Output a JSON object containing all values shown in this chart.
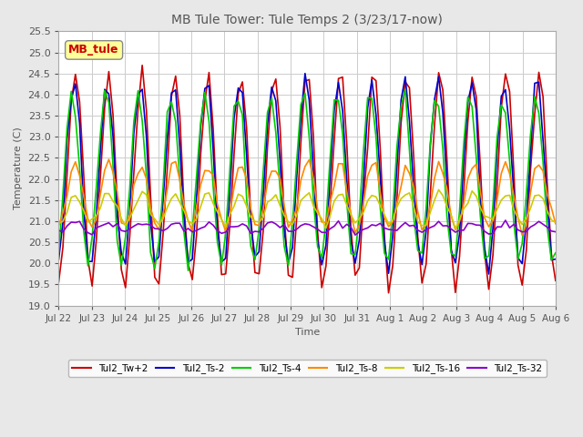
{
  "title": "MB Tule Tower: Tule Temps 2 (3/23/17-now)",
  "xlabel": "Time",
  "ylabel": "Temperature (C)",
  "ylim": [
    19.0,
    25.5
  ],
  "yticks": [
    19.0,
    19.5,
    20.0,
    20.5,
    21.0,
    21.5,
    22.0,
    22.5,
    23.0,
    23.5,
    24.0,
    24.5,
    25.0,
    25.5
  ],
  "x_labels": [
    "Jul 22",
    "Jul 23",
    "Jul 24",
    "Jul 25",
    "Jul 26",
    "Jul 27",
    "Jul 28",
    "Jul 29",
    "Jul 30",
    "Jul 31",
    "Aug 1",
    "Aug 2",
    "Aug 3",
    "Aug 4",
    "Aug 5",
    "Aug 6"
  ],
  "annotation_text": "MB_tule",
  "annotation_color": "#cc0000",
  "annotation_bg": "#ffff99",
  "series": {
    "Tul2_Tw+2": {
      "color": "#cc0000",
      "lw": 1.2
    },
    "Tul2_Ts-2": {
      "color": "#0000cc",
      "lw": 1.2
    },
    "Tul2_Ts-4": {
      "color": "#00cc00",
      "lw": 1.2
    },
    "Tul2_Ts-8": {
      "color": "#ff8800",
      "lw": 1.2
    },
    "Tul2_Ts-16": {
      "color": "#cccc00",
      "lw": 1.2
    },
    "Tul2_Ts-32": {
      "color": "#8800cc",
      "lw": 1.2
    }
  },
  "bg_color": "#e8e8e8",
  "plot_bg": "#ffffff",
  "grid_color": "#cccccc"
}
